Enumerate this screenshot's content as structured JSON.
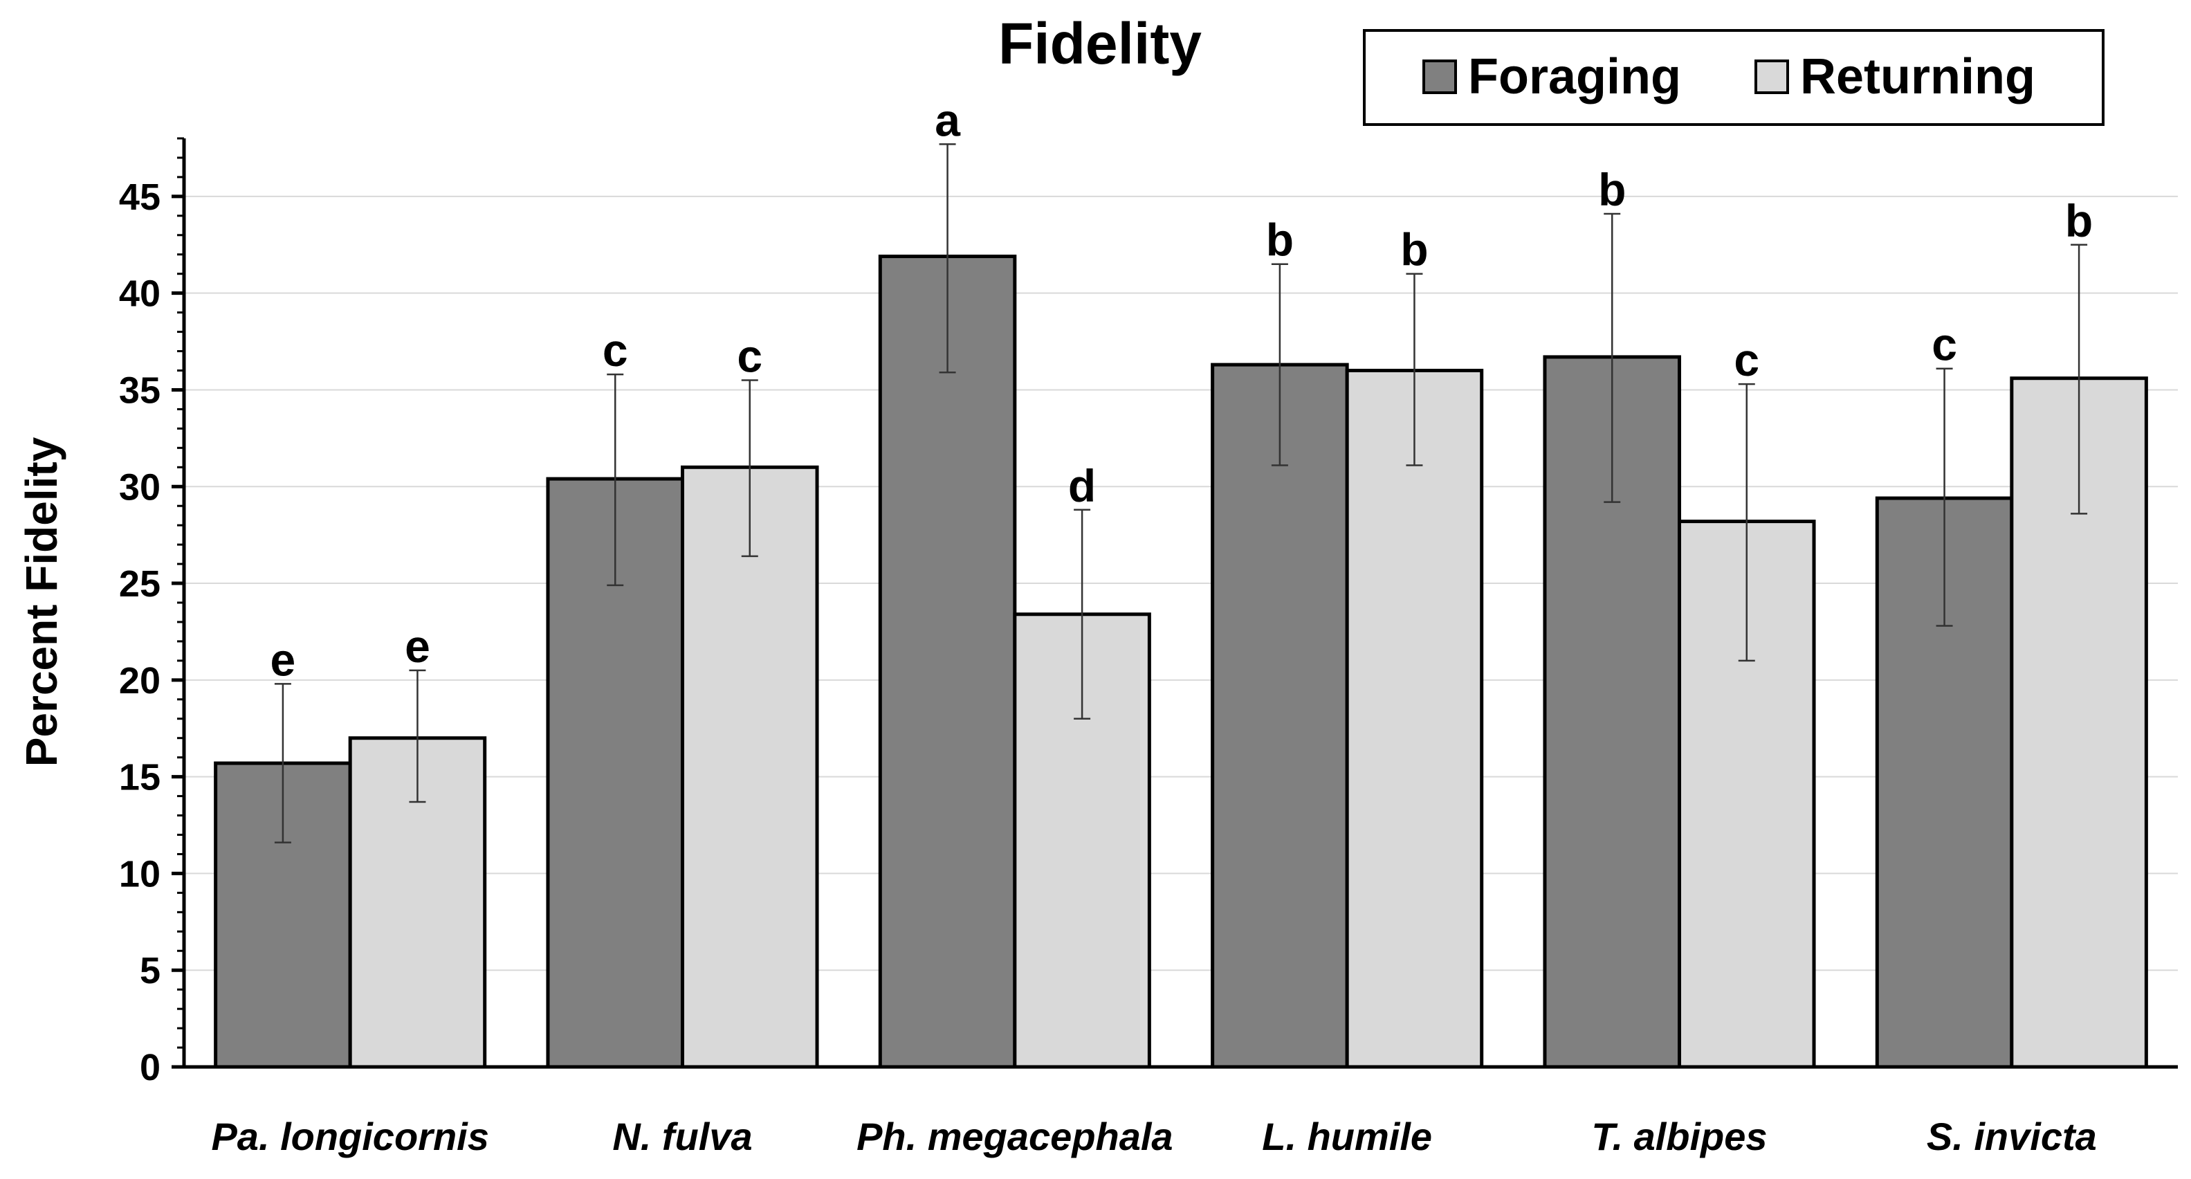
{
  "chart_data": {
    "type": "bar",
    "title": "Fidelity",
    "xlabel": "",
    "ylabel": "Percent Fidelity",
    "ylim": [
      0,
      48
    ],
    "yticks": [
      0,
      5,
      10,
      15,
      20,
      25,
      30,
      35,
      40,
      45
    ],
    "grid": "horizontal",
    "legend_position": "top-right",
    "categories": [
      "Pa. longicornis",
      "N. fulva",
      "Ph. megacephala",
      "L. humile",
      "T. albipes",
      "S. invicta"
    ],
    "series": [
      {
        "name": "Foraging",
        "color": "#808080",
        "values": [
          15.7,
          30.4,
          41.9,
          36.3,
          36.7,
          29.4
        ],
        "err_low": [
          11.6,
          24.9,
          35.9,
          31.1,
          29.2,
          22.8
        ],
        "err_high": [
          19.8,
          35.8,
          47.7,
          41.5,
          44.1,
          36.1
        ],
        "letters": [
          "e",
          "c",
          "a",
          "b",
          "b",
          "c"
        ]
      },
      {
        "name": "Returning",
        "color": "#d9d9d9",
        "values": [
          17.0,
          31.0,
          23.4,
          36.0,
          28.2,
          35.6
        ],
        "err_low": [
          13.7,
          26.4,
          18.0,
          31.1,
          21.0,
          28.6
        ],
        "err_high": [
          20.5,
          35.5,
          28.8,
          41.0,
          35.3,
          42.5
        ],
        "letters": [
          "e",
          "c",
          "d",
          "b",
          "c",
          "b"
        ]
      }
    ]
  }
}
